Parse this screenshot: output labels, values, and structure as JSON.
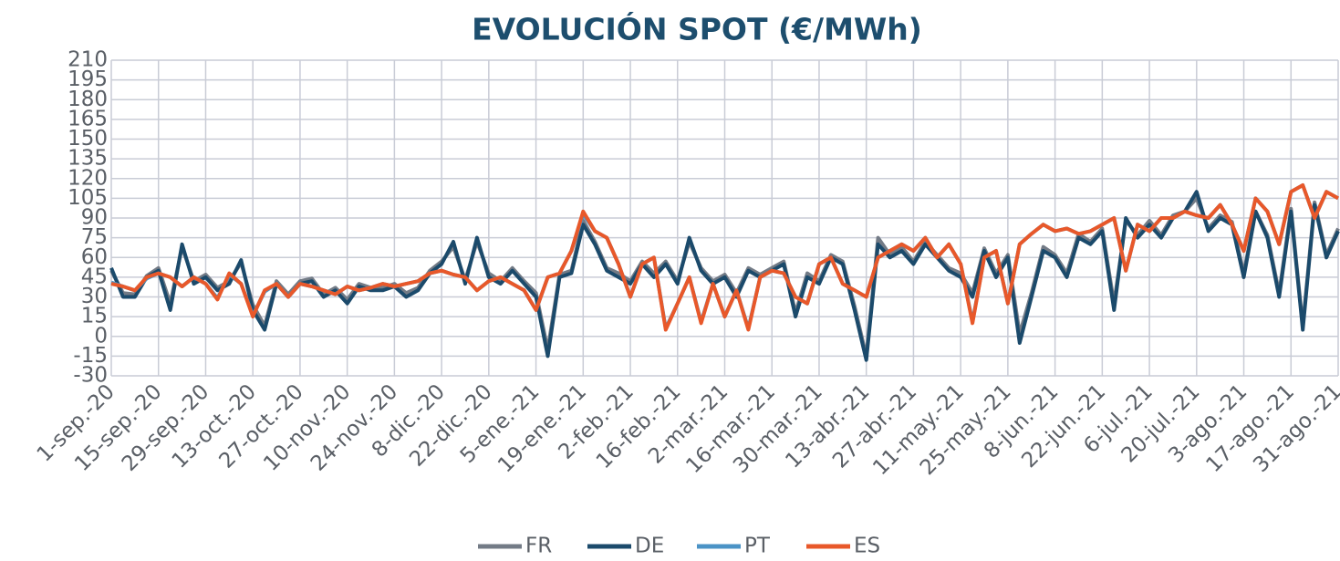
{
  "chart_data": {
    "type": "line",
    "title": "EVOLUCIÓN SPOT (€/MWh)",
    "categories": [
      "1-sep.-20",
      null,
      null,
      null,
      "15-sep.-20",
      null,
      null,
      null,
      "29-sep.-20",
      null,
      null,
      null,
      "13-oct.-20",
      null,
      null,
      null,
      "27-oct.-20",
      null,
      null,
      null,
      "10-nov.-20",
      null,
      null,
      null,
      "24-nov.-20",
      null,
      null,
      null,
      "8-dic.-20",
      null,
      null,
      null,
      "22-dic.-20",
      null,
      null,
      null,
      "5-ene.-21",
      null,
      null,
      null,
      "19-ene.-21",
      null,
      null,
      null,
      "2-feb.-21",
      null,
      null,
      null,
      "16-feb.-21",
      null,
      null,
      null,
      "2-mar.-21",
      null,
      null,
      null,
      "16-mar.-21",
      null,
      null,
      null,
      "30-mar.-21",
      null,
      null,
      null,
      "13-abr.-21",
      null,
      null,
      null,
      "27-abr.-21",
      null,
      null,
      null,
      "11-may.-21",
      null,
      null,
      null,
      "25-may.-21",
      null,
      null,
      null,
      "8-jun.-21",
      null,
      null,
      null,
      "22-jun.-21",
      null,
      null,
      null,
      "6-jul.-21",
      null,
      null,
      null,
      "20-jul.-21",
      null,
      null,
      null,
      "3-ago.-21",
      null,
      null,
      null,
      "17-ago.-21",
      null,
      null,
      null,
      "31-ago.-21"
    ],
    "series": [
      {
        "name": "FR",
        "color": "#737b86",
        "values": [
          50,
          33,
          32,
          46,
          52,
          25,
          68,
          42,
          47,
          37,
          42,
          56,
          24,
          8,
          42,
          32,
          42,
          44,
          32,
          37,
          28,
          40,
          37,
          37,
          40,
          33,
          37,
          50,
          57,
          68,
          43,
          72,
          48,
          42,
          52,
          42,
          33,
          -10,
          47,
          50,
          88,
          72,
          52,
          48,
          42,
          57,
          48,
          57,
          42,
          72,
          52,
          42,
          47,
          33,
          52,
          47,
          52,
          57,
          18,
          48,
          42,
          62,
          57,
          23,
          -15,
          75,
          62,
          68,
          57,
          72,
          62,
          52,
          48,
          33,
          67,
          48,
          62,
          2,
          33,
          68,
          62,
          48,
          78,
          72,
          82,
          25,
          88,
          77,
          88,
          77,
          92,
          95,
          105,
          82,
          92,
          87,
          48,
          95,
          77,
          33,
          97,
          8,
          102,
          62,
          82
        ]
      },
      {
        "name": "DE",
        "color": "#1b4a6b",
        "values": [
          52,
          30,
          30,
          45,
          50,
          20,
          70,
          40,
          45,
          35,
          40,
          58,
          20,
          5,
          40,
          30,
          40,
          42,
          30,
          35,
          25,
          38,
          35,
          35,
          38,
          30,
          35,
          48,
          55,
          72,
          40,
          75,
          45,
          40,
          50,
          40,
          30,
          -15,
          45,
          48,
          85,
          70,
          50,
          45,
          40,
          55,
          45,
          55,
          40,
          75,
          50,
          40,
          45,
          30,
          50,
          45,
          50,
          55,
          15,
          45,
          40,
          60,
          55,
          20,
          -18,
          70,
          60,
          65,
          55,
          70,
          60,
          50,
          45,
          30,
          65,
          45,
          60,
          -5,
          30,
          65,
          60,
          45,
          75,
          70,
          80,
          20,
          90,
          75,
          85,
          75,
          90,
          95,
          110,
          80,
          90,
          85,
          45,
          95,
          75,
          30,
          95,
          5,
          100,
          60,
          80
        ]
      },
      {
        "name": "PT",
        "color": "#4b93c6",
        "values": [
          41,
          38,
          35,
          44,
          48,
          45,
          38,
          45,
          40,
          29,
          47,
          40,
          16,
          34,
          40,
          30,
          40,
          38,
          35,
          32,
          38,
          35,
          37,
          40,
          38,
          40,
          42,
          48,
          50,
          47,
          45,
          35,
          42,
          45,
          40,
          35,
          20,
          45,
          48,
          65,
          93,
          80,
          75,
          55,
          30,
          55,
          60,
          6,
          25,
          45,
          11,
          40,
          15,
          35,
          6,
          45,
          50,
          48,
          30,
          25,
          55,
          60,
          40,
          35,
          30,
          60,
          65,
          70,
          65,
          75,
          60,
          70,
          55,
          11,
          60,
          65,
          25,
          70,
          78,
          85,
          80,
          82,
          78,
          80,
          85,
          90,
          50,
          85,
          80,
          90,
          90,
          95,
          92,
          90,
          100,
          85,
          65,
          105,
          95,
          70,
          110,
          115,
          90,
          110,
          105
        ]
      },
      {
        "name": "ES",
        "color": "#e8582a",
        "values": [
          40,
          38,
          35,
          45,
          48,
          45,
          38,
          45,
          40,
          28,
          48,
          40,
          15,
          35,
          40,
          30,
          40,
          38,
          35,
          32,
          38,
          35,
          37,
          40,
          38,
          40,
          42,
          48,
          50,
          47,
          45,
          35,
          42,
          45,
          40,
          35,
          20,
          45,
          48,
          65,
          95,
          80,
          75,
          55,
          30,
          55,
          60,
          5,
          25,
          45,
          10,
          40,
          15,
          35,
          5,
          45,
          50,
          48,
          30,
          25,
          55,
          60,
          40,
          35,
          30,
          60,
          65,
          70,
          65,
          75,
          60,
          70,
          55,
          10,
          60,
          65,
          25,
          70,
          78,
          85,
          80,
          82,
          78,
          80,
          85,
          90,
          50,
          85,
          80,
          90,
          90,
          95,
          92,
          90,
          100,
          85,
          65,
          105,
          95,
          70,
          110,
          115,
          90,
          110,
          105
        ]
      }
    ],
    "ylim": [
      -30,
      210
    ],
    "yticks": [
      -30,
      -15,
      0,
      15,
      30,
      45,
      60,
      75,
      90,
      105,
      120,
      135,
      150,
      165,
      180,
      195,
      210
    ],
    "grid": true,
    "legend": "bottom"
  }
}
